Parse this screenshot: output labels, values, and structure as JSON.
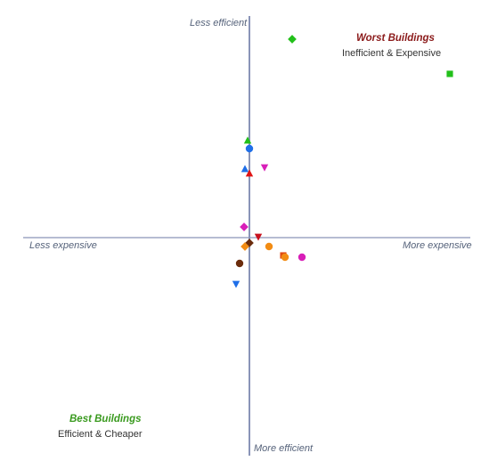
{
  "chart_data": {
    "type": "scatter",
    "axis_labels": {
      "top": "Less efficient",
      "bottom": "More efficient",
      "left": "Less expensive",
      "right": "More expensive"
    },
    "quadrants": {
      "worst": {
        "title": "Worst Buildings",
        "subtitle": "Inefficient & Expensive",
        "color": "#8b1a1a"
      },
      "best": {
        "title": "Best Buildings",
        "subtitle": "Efficient & Cheaper",
        "color": "#3a9a1f"
      }
    },
    "axis_color": "#8a94b8",
    "xlim": [
      -280,
      260
    ],
    "ylim": [
      -250,
      268
    ],
    "grid": false,
    "points": [
      {
        "x": 48,
        "y": 224,
        "shape": "diamond",
        "color": "#22c01a"
      },
      {
        "x": 225,
        "y": 185,
        "shape": "square",
        "color": "#22c01a"
      },
      {
        "x": -2,
        "y": 110,
        "shape": "triangle-up",
        "color": "#22c01a"
      },
      {
        "x": 0,
        "y": 101,
        "shape": "circle",
        "color": "#1f6fe8"
      },
      {
        "x": -5,
        "y": 78,
        "shape": "triangle-up",
        "color": "#1f6fe8"
      },
      {
        "x": 17,
        "y": 80,
        "shape": "triangle-down",
        "color": "#d81fb8"
      },
      {
        "x": 0,
        "y": 73,
        "shape": "triangle-up",
        "color": "#e01515"
      },
      {
        "x": -6,
        "y": 13,
        "shape": "diamond",
        "color": "#d81fb8"
      },
      {
        "x": 10,
        "y": 2,
        "shape": "triangle-down",
        "color": "#c8121e"
      },
      {
        "x": 0,
        "y": -5,
        "shape": "diamond",
        "color": "#6b2c0c"
      },
      {
        "x": -5,
        "y": -9,
        "shape": "diamond",
        "color": "#f28c14"
      },
      {
        "x": 22,
        "y": -9,
        "shape": "circle",
        "color": "#f28c14"
      },
      {
        "x": 38,
        "y": -19,
        "shape": "square",
        "color": "#e04a12"
      },
      {
        "x": 40,
        "y": -21,
        "shape": "circle",
        "color": "#f28c14"
      },
      {
        "x": 59,
        "y": -21,
        "shape": "circle",
        "color": "#d81fb8"
      },
      {
        "x": -11,
        "y": -28,
        "shape": "circle",
        "color": "#6b2c0c"
      },
      {
        "x": -15,
        "y": -51,
        "shape": "triangle-down",
        "color": "#1f6fe8"
      }
    ]
  }
}
